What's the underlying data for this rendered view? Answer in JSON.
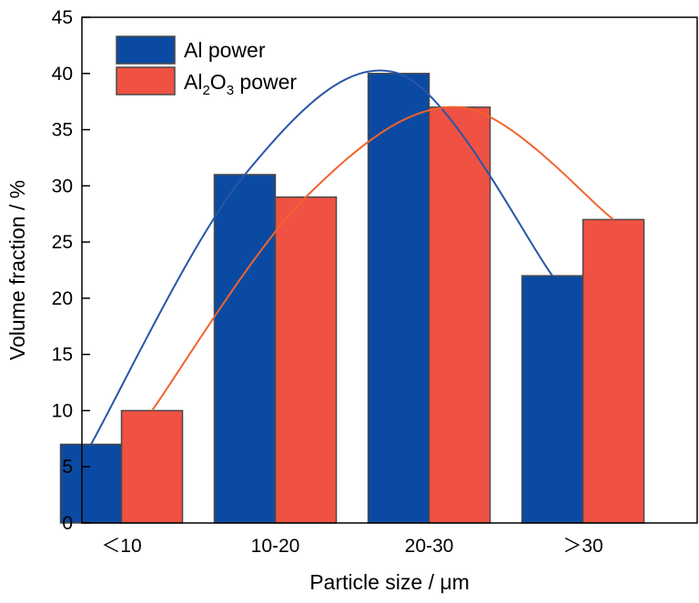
{
  "chart_data": {
    "type": "bar",
    "categories": [
      "＜10",
      "10-20",
      "20-30",
      "＞30"
    ],
    "series": [
      {
        "name": "Al power",
        "values": [
          7,
          31,
          40,
          22
        ],
        "color": "#0b4aa2"
      },
      {
        "name": "Al2O3 power",
        "values": [
          10,
          29,
          37,
          27
        ],
        "color": "#ef5142"
      }
    ],
    "fit_curves": [
      {
        "series": "Al power",
        "color": "#2a55a8"
      },
      {
        "series": "Al2O3 power",
        "color": "#f0632e"
      }
    ],
    "legend_labels": {
      "series0": "Al power",
      "series1_prefix": "Al",
      "series1_sub1": "2",
      "series1_mid": "O",
      "series1_sub2": "3",
      "series1_suffix": " power"
    },
    "legend_position": "top-left",
    "xlabel": "Particle size / μm",
    "ylabel": "Volume fraction / %",
    "ylim": [
      0,
      45
    ],
    "yticks": [
      0,
      5,
      10,
      15,
      20,
      25,
      30,
      35,
      40,
      45
    ],
    "grid": false
  }
}
